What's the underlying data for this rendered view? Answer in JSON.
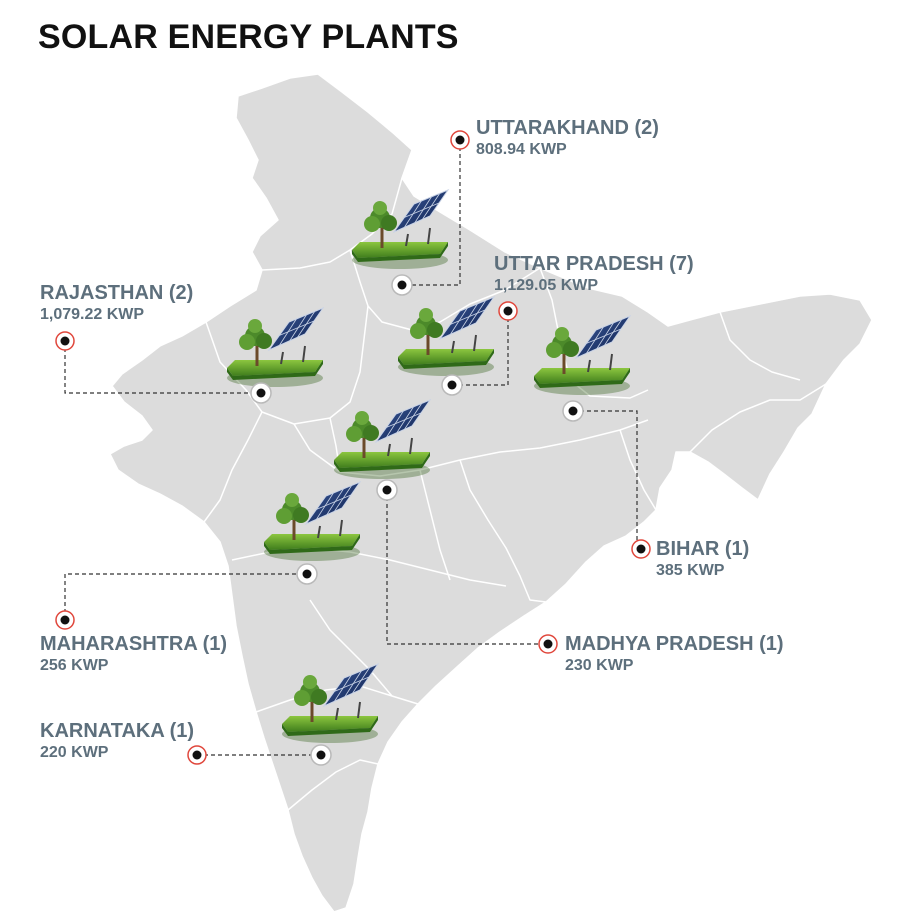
{
  "title": "SOLAR ENERGY PLANTS",
  "colors": {
    "map_fill": "#dcdcdc",
    "border": "#ffffff",
    "label_text": "#5d6f7c",
    "marker_ring": "#e0473c",
    "marker_dot": "#111111"
  },
  "plants": [
    {
      "state": "UTTARAKHAND (2)",
      "capacity": "808.94 KWP"
    },
    {
      "state": "UTTAR PRADESH (7)",
      "capacity": "1,129.05 KWP"
    },
    {
      "state": "RAJASTHAN (2)",
      "capacity": "1,079.22 KWP"
    },
    {
      "state": "BIHAR (1)",
      "capacity": "385 KWP"
    },
    {
      "state": "MAHARASHTRA (1)",
      "capacity": "256 KWP"
    },
    {
      "state": "MADHYA PRADESH (1)",
      "capacity": "230 KWP"
    },
    {
      "state": "KARNATAKA (1)",
      "capacity": "220 KWP"
    }
  ],
  "icons": {
    "plant": "solar-panel-with-tree-icon",
    "location_marker": "location-marker-icon",
    "label_marker": "label-marker-icon"
  }
}
